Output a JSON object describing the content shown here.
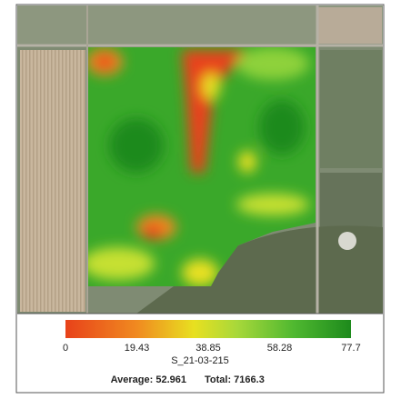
{
  "legend": {
    "ticks": [
      "0",
      "19.43",
      "38.85",
      "58.28",
      "77.7"
    ],
    "layer_name": "S_21-03-215"
  },
  "stats": {
    "average": "Average: 52.961",
    "total": "Total: 7166.3"
  }
}
